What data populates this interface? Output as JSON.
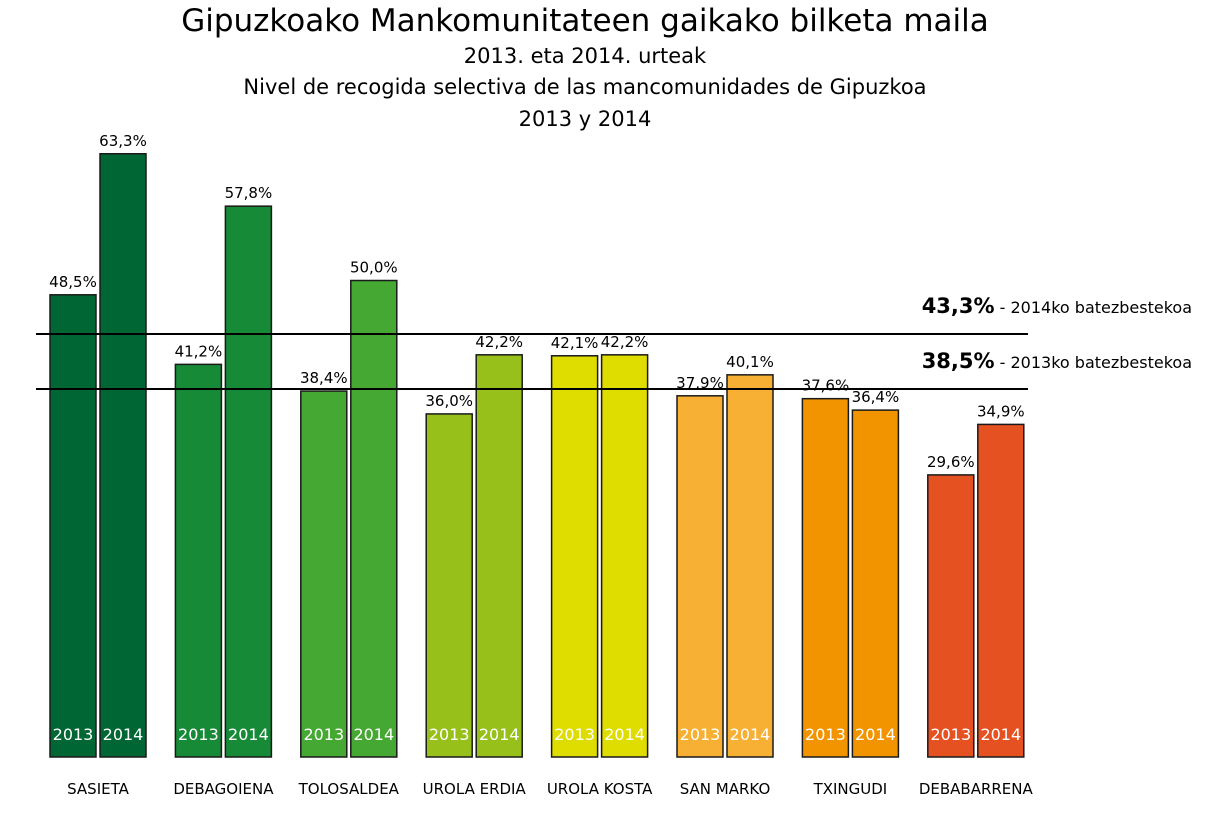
{
  "chart_data": {
    "type": "bar",
    "title": "Gipuzkoako Mankomunitateen gaikako bilketa maila",
    "subtitles": [
      "2013. eta 2014. urteak",
      "Nivel de recogida selectiva de las mancomunidades de Gipuzkoa",
      "2013 y 2014"
    ],
    "categories": [
      "SASIETA",
      "DEBAGOIENA",
      "TOLOSALDEA",
      "UROLA ERDIA",
      "UROLA KOSTA",
      "SAN MARKO",
      "TXINGUDI",
      "DEBABARRENA"
    ],
    "series": [
      {
        "name": "2013",
        "values": [
          48.5,
          41.2,
          38.4,
          36.0,
          42.1,
          37.9,
          37.6,
          29.6
        ],
        "labels": [
          "48,5%",
          "41,2%",
          "38,4%",
          "36,0%",
          "42,1%",
          "37,9%",
          "37,6%",
          "29,6%"
        ]
      },
      {
        "name": "2014",
        "values": [
          63.3,
          57.8,
          50.0,
          42.2,
          42.2,
          40.1,
          36.4,
          34.9
        ],
        "labels": [
          "63,3%",
          "57,8%",
          "50,0%",
          "42,2%",
          "42,2%",
          "40,1%",
          "36,4%",
          "34,9%"
        ]
      }
    ],
    "colors": [
      "#006633",
      "#168a36",
      "#45a832",
      "#97c11a",
      "#dfdc00",
      "#f7b033",
      "#f29400",
      "#e65122"
    ],
    "reference_lines": [
      {
        "value": 43.3,
        "value_label": "43,3%",
        "text": " - 2014ko batezbestekoa"
      },
      {
        "value": 38.5,
        "value_label": "38,5%",
        "text": " - 2013ko batezbestekoa"
      }
    ],
    "ylim": [
      0,
      63.3
    ],
    "grid": false,
    "legend": "none"
  }
}
